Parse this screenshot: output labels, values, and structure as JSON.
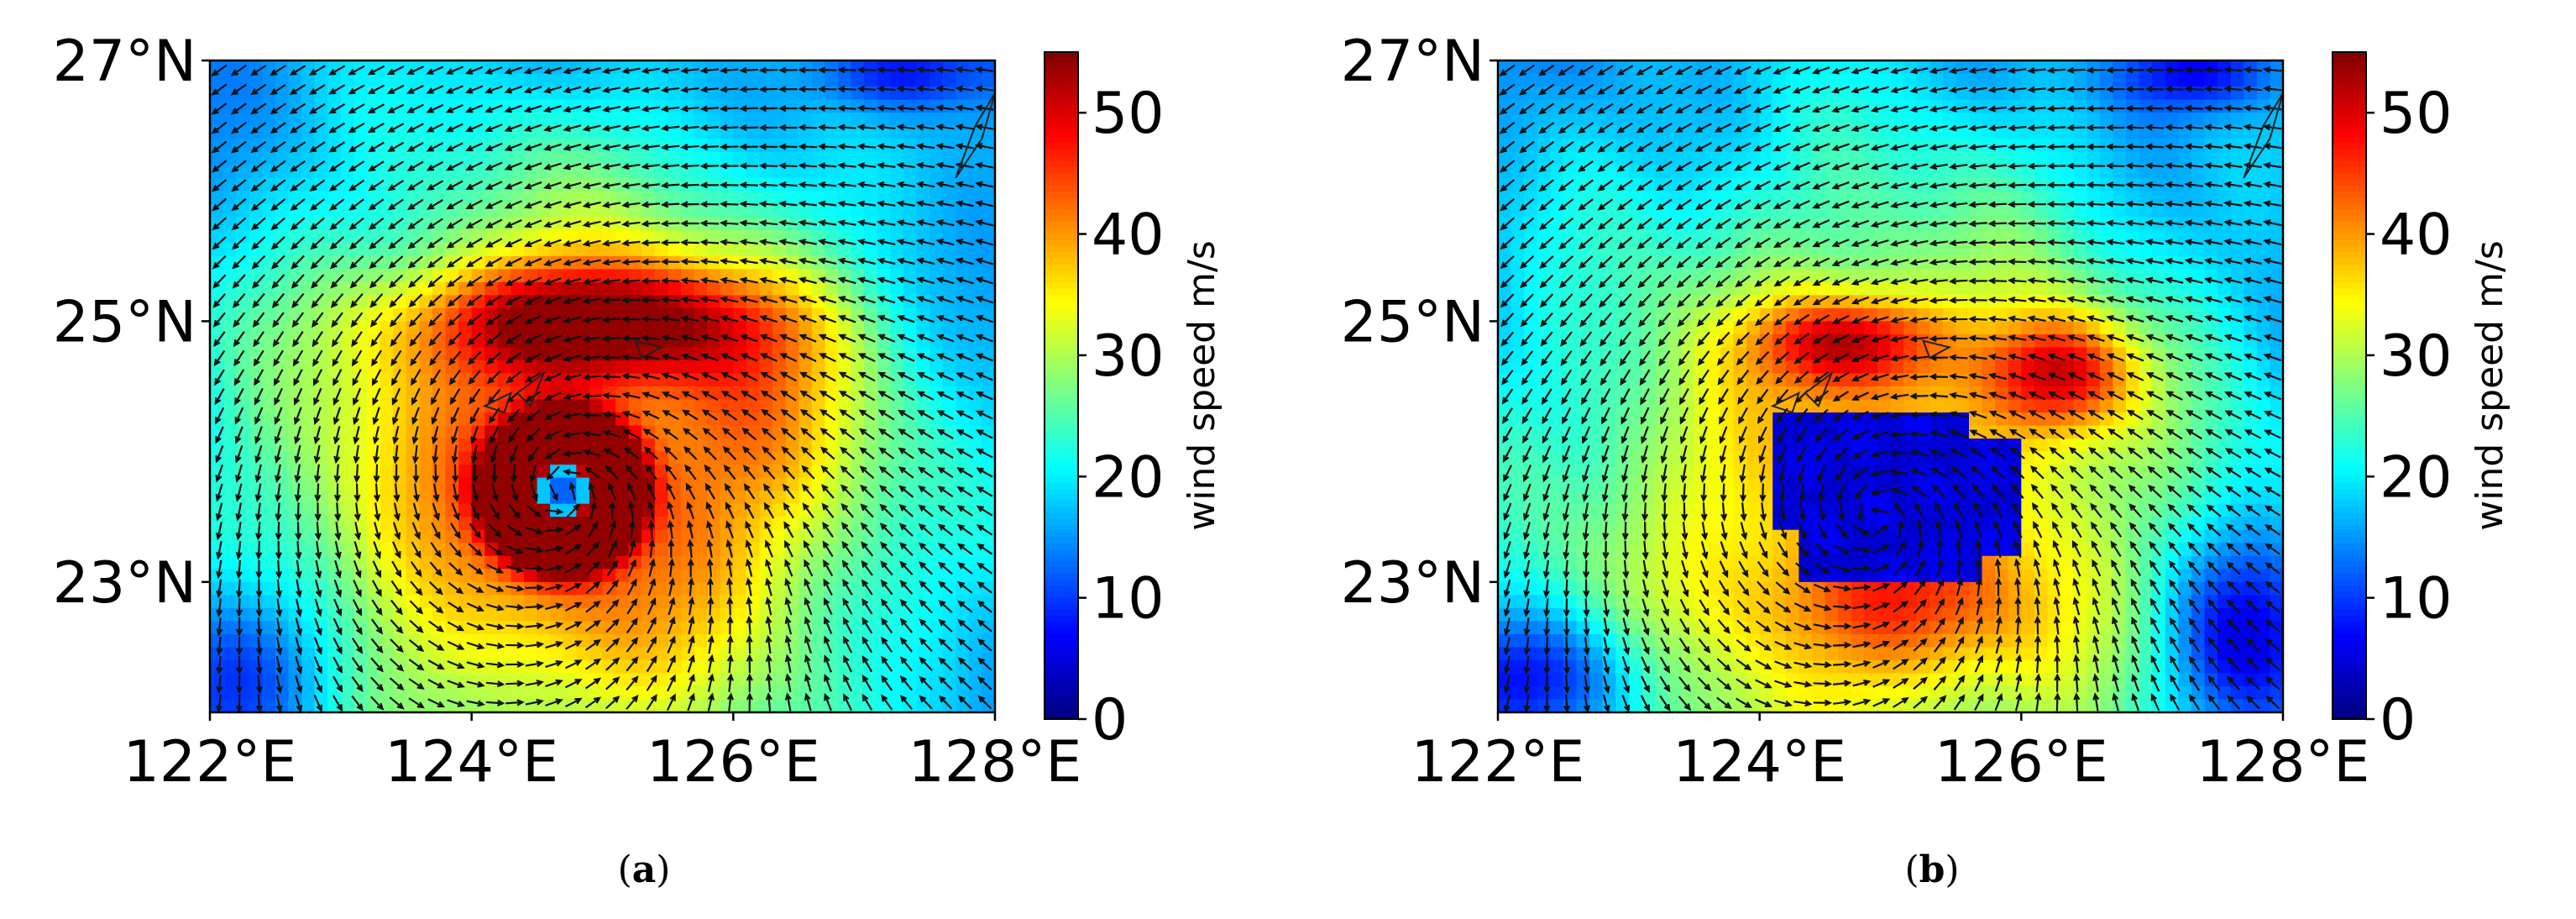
{
  "panels": [
    {
      "id": "a",
      "caption_open": "(",
      "caption_letter": "a",
      "caption_close": ")"
    },
    {
      "id": "b",
      "caption_open": "(",
      "caption_letter": "b",
      "caption_close": ")"
    }
  ],
  "chart_data": [
    {
      "type": "heatmap",
      "panel": "a",
      "title": "",
      "xlabel": "",
      "ylabel": "",
      "x_range": [
        122,
        128
      ],
      "y_range": [
        22,
        27
      ],
      "x_ticks": [
        122,
        124,
        126,
        128
      ],
      "x_tick_labels": [
        "122°E",
        "124°E",
        "126°E",
        "128°E"
      ],
      "y_ticks": [
        23,
        25,
        27
      ],
      "y_tick_labels": [
        "23°N",
        "25°N",
        "27°N"
      ],
      "colorbar": {
        "label": "wind speed m/s",
        "range": [
          0,
          55
        ],
        "ticks": [
          0,
          10,
          20,
          30,
          40,
          50
        ],
        "tick_labels": [
          "0",
          "10",
          "20",
          "30",
          "40",
          "50"
        ],
        "colormap": "jet"
      },
      "field": {
        "description_units": "m/s",
        "background_speed": 22,
        "vortex_center": [
          124.7,
          23.7
        ],
        "eye_speed": 8,
        "max_speed": 52,
        "radius_of_max_wind_deg": 0.45
      },
      "vectors": "cyclonic wind arrows on regular grid"
    },
    {
      "type": "heatmap",
      "panel": "b",
      "title": "",
      "xlabel": "",
      "ylabel": "",
      "x_range": [
        122,
        128
      ],
      "y_range": [
        22,
        27
      ],
      "x_ticks": [
        122,
        124,
        126,
        128
      ],
      "x_tick_labels": [
        "122°E",
        "124°E",
        "126°E",
        "128°E"
      ],
      "y_ticks": [
        23,
        25,
        27
      ],
      "y_tick_labels": [
        "23°N",
        "25°N",
        "27°N"
      ],
      "colorbar": {
        "label": "wind speed m/s",
        "range": [
          0,
          55
        ],
        "ticks": [
          0,
          10,
          20,
          30,
          40,
          50
        ],
        "tick_labels": [
          "0",
          "10",
          "20",
          "30",
          "40",
          "50"
        ],
        "colormap": "jet"
      },
      "field": {
        "description_units": "m/s",
        "background_speed": 22,
        "vortex_center": [
          124.9,
          23.5
        ],
        "eye_speed": 4,
        "max_speed": 46,
        "low_wind_region_lon": [
          124.0,
          126.1
        ],
        "low_wind_region_lat": [
          22.9,
          24.3
        ]
      },
      "vectors": "cyclonic wind arrows on regular grid"
    }
  ]
}
